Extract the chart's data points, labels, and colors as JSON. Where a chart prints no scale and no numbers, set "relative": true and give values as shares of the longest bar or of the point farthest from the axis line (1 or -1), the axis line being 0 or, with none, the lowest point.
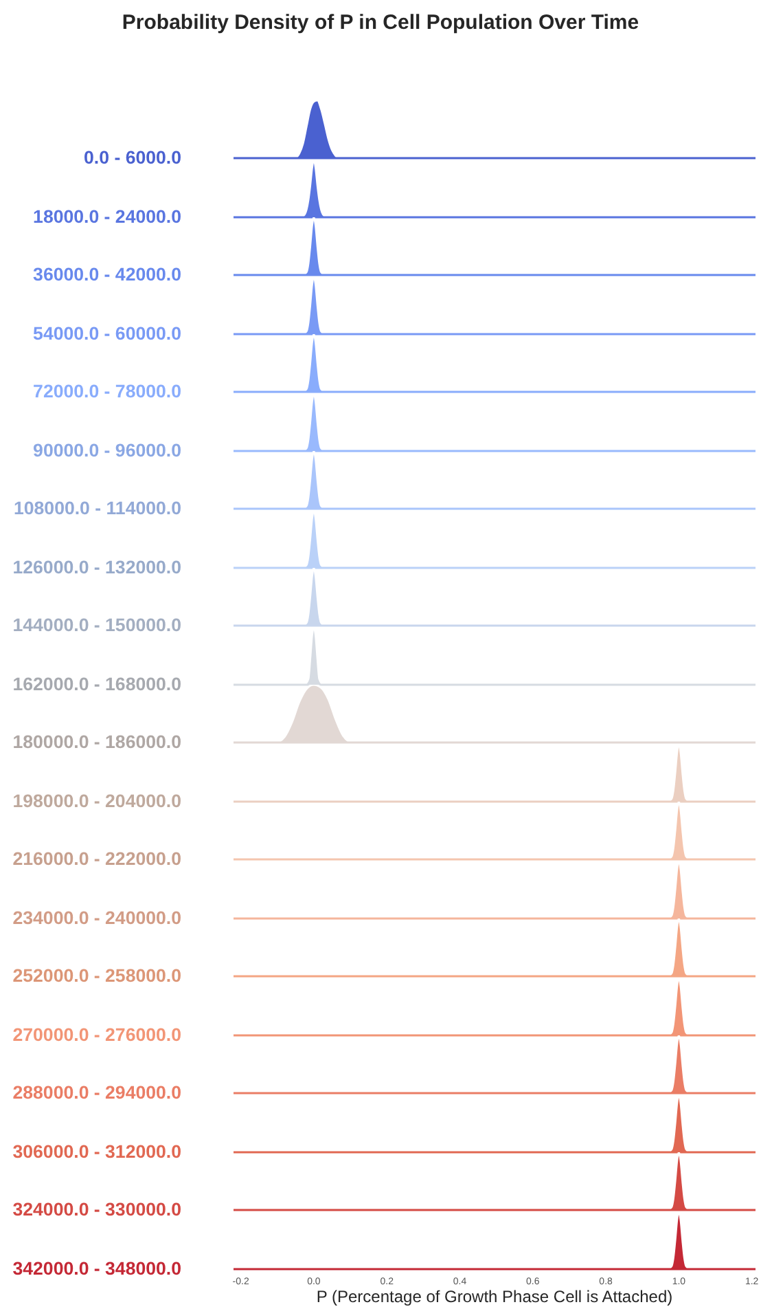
{
  "chart_data": [
    {
      "type": "area",
      "title": "Probability Density of P in Cell Population Over Time",
      "relative": true,
      "x": [
        -0.05,
        -0.04,
        -0.03,
        -0.02,
        -0.01,
        0,
        0.01,
        0.02,
        0.03,
        0.04,
        0.05,
        0.06,
        0.07
      ],
      "series": [
        {
          "name": "0.0 - 6000.0",
          "color": "#4a61d0",
          "values": [
            0,
            0.08,
            0.25,
            0.55,
            0.85,
            0.98,
            1,
            0.85,
            0.6,
            0.33,
            0.14,
            0.04,
            0
          ]
        }
      ],
      "xlim": [
        -0.22,
        1.21
      ],
      "tick_labels": false
    },
    {
      "type": "area",
      "relative": true,
      "x": [
        -0.035,
        -0.025,
        -0.015,
        -0.01,
        -0.005,
        0,
        0.005,
        0.01,
        0.015,
        0.025,
        0.035
      ],
      "series": [
        {
          "name": "18000.0 - 24000.0",
          "color": "#5975e0",
          "values": [
            0,
            0.05,
            0.3,
            0.55,
            0.85,
            1,
            0.85,
            0.55,
            0.3,
            0.05,
            0
          ]
        }
      ],
      "xlim": [
        -0.22,
        1.21
      ],
      "tick_labels": false
    },
    {
      "type": "area",
      "relative": true,
      "x": [
        -0.03,
        -0.02,
        -0.015,
        -0.01,
        -0.005,
        0,
        0.005,
        0.01,
        0.015,
        0.02,
        0.03
      ],
      "series": [
        {
          "name": "36000.0 - 42000.0",
          "color": "#6889ed",
          "values": [
            0,
            0.05,
            0.2,
            0.5,
            0.85,
            1,
            0.85,
            0.5,
            0.2,
            0.05,
            0
          ]
        }
      ],
      "xlim": [
        -0.22,
        1.21
      ],
      "tick_labels": false
    },
    {
      "type": "area",
      "relative": true,
      "x": [
        -0.03,
        -0.02,
        -0.015,
        -0.01,
        -0.005,
        0,
        0.005,
        0.01,
        0.015,
        0.02,
        0.03
      ],
      "series": [
        {
          "name": "54000.0 - 60000.0",
          "color": "#799af5",
          "values": [
            0,
            0.05,
            0.2,
            0.5,
            0.85,
            1,
            0.85,
            0.5,
            0.2,
            0.05,
            0
          ]
        }
      ],
      "xlim": [
        -0.22,
        1.21
      ],
      "tick_labels": false
    },
    {
      "type": "area",
      "relative": true,
      "x": [
        -0.03,
        -0.02,
        -0.015,
        -0.01,
        -0.005,
        0,
        0.005,
        0.01,
        0.015,
        0.02,
        0.03
      ],
      "series": [
        {
          "name": "72000.0 - 78000.0",
          "color": "#89acfc",
          "values": [
            0,
            0.05,
            0.2,
            0.5,
            0.85,
            1,
            0.85,
            0.5,
            0.2,
            0.05,
            0
          ]
        }
      ],
      "xlim": [
        -0.22,
        1.21
      ],
      "tick_labels": false
    },
    {
      "type": "area",
      "relative": true,
      "x": [
        -0.03,
        -0.02,
        -0.015,
        -0.01,
        -0.005,
        0,
        0.005,
        0.01,
        0.015,
        0.02,
        0.03
      ],
      "series": [
        {
          "name": "90000.0 - 96000.0",
          "color": "#99b9fd",
          "values": [
            0,
            0.05,
            0.2,
            0.5,
            0.85,
            1,
            0.85,
            0.5,
            0.2,
            0.05,
            0
          ]
        }
      ],
      "xlim": [
        -0.22,
        1.21
      ],
      "tick_labels": false
    },
    {
      "type": "area",
      "relative": true,
      "x": [
        -0.03,
        -0.02,
        -0.015,
        -0.01,
        -0.005,
        0,
        0.005,
        0.01,
        0.015,
        0.02,
        0.03
      ],
      "series": [
        {
          "name": "108000.0 - 114000.0",
          "color": "#aac5fb",
          "values": [
            0,
            0.05,
            0.2,
            0.5,
            0.85,
            1,
            0.85,
            0.5,
            0.2,
            0.05,
            0
          ]
        }
      ],
      "xlim": [
        -0.22,
        1.21
      ],
      "tick_labels": false
    },
    {
      "type": "area",
      "relative": true,
      "x": [
        -0.03,
        -0.02,
        -0.015,
        -0.01,
        -0.005,
        0,
        0.005,
        0.01,
        0.015,
        0.02,
        0.03
      ],
      "series": [
        {
          "name": "126000.0 - 132000.0",
          "color": "#bad1f8",
          "values": [
            0,
            0.05,
            0.2,
            0.5,
            0.85,
            1,
            0.85,
            0.5,
            0.2,
            0.05,
            0
          ]
        }
      ],
      "xlim": [
        -0.22,
        1.21
      ],
      "tick_labels": false
    },
    {
      "type": "area",
      "relative": true,
      "x": [
        -0.03,
        -0.02,
        -0.015,
        -0.01,
        -0.005,
        0,
        0.005,
        0.01,
        0.015,
        0.02,
        0.03
      ],
      "series": [
        {
          "name": "144000.0 - 150000.0",
          "color": "#c8d6ed",
          "values": [
            0,
            0.05,
            0.2,
            0.5,
            0.85,
            1,
            0.85,
            0.5,
            0.2,
            0.05,
            0
          ]
        }
      ],
      "xlim": [
        -0.22,
        1.21
      ],
      "tick_labels": false
    },
    {
      "type": "area",
      "relative": true,
      "x": [
        -0.025,
        -0.015,
        -0.01,
        -0.005,
        0,
        0.005,
        0.01,
        0.015,
        0.025
      ],
      "series": [
        {
          "name": "162000.0 - 168000.0",
          "color": "#d6dbe2",
          "values": [
            0,
            0.1,
            0.45,
            0.85,
            1,
            0.85,
            0.45,
            0.1,
            0
          ]
        }
      ],
      "xlim": [
        -0.22,
        1.21
      ],
      "tick_labels": false
    },
    {
      "type": "area",
      "relative": true,
      "x": [
        -0.1,
        -0.08,
        -0.06,
        -0.04,
        -0.02,
        0,
        0.02,
        0.04,
        0.06,
        0.08,
        0.1
      ],
      "series": [
        {
          "name": "180000.0 - 186000.0",
          "color": "#e2d8d4",
          "values": [
            0,
            0.1,
            0.35,
            0.7,
            0.93,
            1,
            0.95,
            0.75,
            0.4,
            0.12,
            0
          ]
        }
      ],
      "xlim": [
        -0.22,
        1.21
      ],
      "tick_labels": false
    },
    {
      "type": "area",
      "relative": true,
      "x": [
        0.97,
        0.98,
        0.985,
        0.99,
        0.995,
        1,
        1.005,
        1.01,
        1.015,
        1.02,
        1.03
      ],
      "series": [
        {
          "name": "198000.0 - 204000.0",
          "color": "#ebcfc1",
          "values": [
            0,
            0.05,
            0.2,
            0.5,
            0.85,
            1,
            0.85,
            0.5,
            0.2,
            0.05,
            0
          ]
        }
      ],
      "xlim": [
        -0.22,
        1.21
      ],
      "tick_labels": false
    },
    {
      "type": "area",
      "relative": true,
      "x": [
        0.97,
        0.98,
        0.985,
        0.99,
        0.995,
        1,
        1.005,
        1.01,
        1.015,
        1.02,
        1.03
      ],
      "series": [
        {
          "name": "216000.0 - 222000.0",
          "color": "#f4c5ae",
          "values": [
            0,
            0.05,
            0.2,
            0.5,
            0.85,
            1,
            0.85,
            0.5,
            0.2,
            0.05,
            0
          ]
        }
      ],
      "xlim": [
        -0.22,
        1.21
      ],
      "tick_labels": false
    },
    {
      "type": "area",
      "relative": true,
      "x": [
        0.97,
        0.98,
        0.985,
        0.99,
        0.995,
        1,
        1.005,
        1.01,
        1.015,
        1.02,
        1.03
      ],
      "series": [
        {
          "name": "234000.0 - 240000.0",
          "color": "#f5b69c",
          "values": [
            0,
            0.05,
            0.2,
            0.5,
            0.85,
            1,
            0.85,
            0.5,
            0.2,
            0.05,
            0
          ]
        }
      ],
      "xlim": [
        -0.22,
        1.21
      ],
      "tick_labels": false
    },
    {
      "type": "area",
      "relative": true,
      "x": [
        0.97,
        0.98,
        0.985,
        0.99,
        0.995,
        1,
        1.005,
        1.01,
        1.015,
        1.02,
        1.03
      ],
      "series": [
        {
          "name": "252000.0 - 258000.0",
          "color": "#f4a684",
          "values": [
            0,
            0.05,
            0.2,
            0.5,
            0.85,
            1,
            0.85,
            0.5,
            0.2,
            0.05,
            0
          ]
        }
      ],
      "xlim": [
        -0.22,
        1.21
      ],
      "tick_labels": false
    },
    {
      "type": "area",
      "relative": true,
      "x": [
        0.97,
        0.98,
        0.985,
        0.99,
        0.995,
        1,
        1.005,
        1.01,
        1.015,
        1.02,
        1.03
      ],
      "series": [
        {
          "name": "270000.0 - 276000.0",
          "color": "#f29576",
          "values": [
            0,
            0.05,
            0.2,
            0.5,
            0.85,
            1,
            0.85,
            0.5,
            0.2,
            0.05,
            0
          ]
        }
      ],
      "xlim": [
        -0.22,
        1.21
      ],
      "tick_labels": false
    },
    {
      "type": "area",
      "relative": true,
      "x": [
        0.97,
        0.98,
        0.985,
        0.99,
        0.995,
        1,
        1.005,
        1.01,
        1.015,
        1.02,
        1.03
      ],
      "series": [
        {
          "name": "288000.0 - 294000.0",
          "color": "#ea7d65",
          "values": [
            0,
            0.05,
            0.2,
            0.5,
            0.85,
            1,
            0.85,
            0.5,
            0.2,
            0.05,
            0
          ]
        }
      ],
      "xlim": [
        -0.22,
        1.21
      ],
      "tick_labels": false
    },
    {
      "type": "area",
      "relative": true,
      "x": [
        0.97,
        0.98,
        0.985,
        0.99,
        0.995,
        1,
        1.005,
        1.01,
        1.015,
        1.02,
        1.03
      ],
      "series": [
        {
          "name": "306000.0 - 312000.0",
          "color": "#e16852",
          "values": [
            0,
            0.05,
            0.2,
            0.5,
            0.85,
            1,
            0.85,
            0.5,
            0.2,
            0.05,
            0
          ]
        }
      ],
      "xlim": [
        -0.22,
        1.21
      ],
      "tick_labels": false
    },
    {
      "type": "area",
      "relative": true,
      "x": [
        0.97,
        0.98,
        0.985,
        0.99,
        0.995,
        1,
        1.005,
        1.01,
        1.015,
        1.02,
        1.03
      ],
      "series": [
        {
          "name": "324000.0 - 330000.0",
          "color": "#d44a44",
          "values": [
            0,
            0.05,
            0.2,
            0.5,
            0.85,
            1,
            0.85,
            0.5,
            0.2,
            0.05,
            0
          ]
        }
      ],
      "xlim": [
        -0.22,
        1.21
      ],
      "tick_labels": false
    },
    {
      "type": "area",
      "relative": true,
      "xlabel": "P (Percentage of Growth Phase Cell is Attached)",
      "x": [
        0.97,
        0.98,
        0.985,
        0.99,
        0.995,
        1,
        1.005,
        1.01,
        1.015,
        1.02,
        1.03
      ],
      "series": [
        {
          "name": "342000.0 - 348000.0",
          "color": "#c42835",
          "values": [
            0,
            0.05,
            0.2,
            0.5,
            0.85,
            1,
            0.85,
            0.5,
            0.2,
            0.05,
            0
          ]
        }
      ],
      "xlim": [
        -0.22,
        1.21
      ],
      "xticks": [
        -0.2,
        {
          "value": 0,
          "label": "0.0"
        },
        0.2,
        0.4,
        0.6,
        0.8,
        {
          "value": 1,
          "label": "1.0"
        },
        1.2
      ],
      "tick_labels": "x"
    }
  ]
}
